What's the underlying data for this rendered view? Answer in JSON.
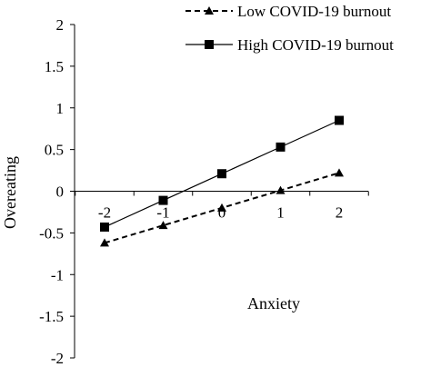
{
  "chart_data": {
    "type": "line",
    "title": "",
    "xlabel": "Anxiety",
    "ylabel": "Overeating",
    "x": [
      -2,
      -1,
      0,
      1,
      2
    ],
    "x_tick_labels": [
      "-2",
      "-1",
      "0",
      "1",
      "2"
    ],
    "y_tick_labels": [
      "2",
      "1.5",
      "1",
      "0.5",
      "0",
      "-0.5",
      "-1",
      "-1.5",
      "-2"
    ],
    "xlim": [
      -2.5,
      2.5
    ],
    "ylim": [
      -2,
      2
    ],
    "grid": false,
    "legend_position": "top-right",
    "series": [
      {
        "name": "Low COVID-19 burnout",
        "marker": "triangle",
        "line_style": "dashed",
        "color": "#000000",
        "values": [
          -0.62,
          -0.41,
          -0.2,
          0.01,
          0.22
        ]
      },
      {
        "name": "High COVID-19 burnout",
        "marker": "square",
        "line_style": "solid",
        "color": "#000000",
        "values": [
          -0.43,
          -0.11,
          0.21,
          0.53,
          0.85
        ]
      }
    ]
  }
}
